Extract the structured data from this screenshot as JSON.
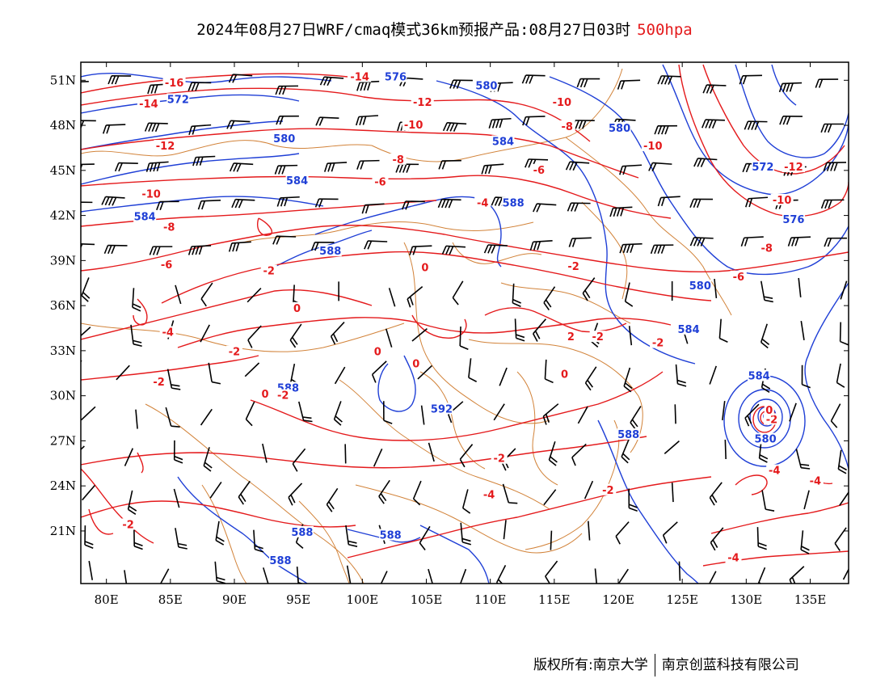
{
  "header": {
    "title": "2024年08月27日WRF/cmaq模式36km预报产品:08月27日03时",
    "level": "500hpa"
  },
  "axes": {
    "lat_labels": [
      "51N",
      "48N",
      "45N",
      "42N",
      "39N",
      "36N",
      "33N",
      "30N",
      "27N",
      "24N",
      "21N"
    ],
    "lon_labels": [
      "80E",
      "85E",
      "90E",
      "95E",
      "100E",
      "105E",
      "110E",
      "115E",
      "120E",
      "125E",
      "130E",
      "135E"
    ]
  },
  "colors": {
    "temperature": "#e41a1c",
    "height": "#1f3fd6",
    "boundary": "#d2833a",
    "barb": "#000000"
  },
  "map_data": {
    "height_labels": [
      {
        "text": "576",
        "lon": 102.6,
        "lat": 51.2
      },
      {
        "text": "572",
        "lon": 85.6,
        "lat": 49.7
      },
      {
        "text": "580",
        "lon": 109.7,
        "lat": 50.6
      },
      {
        "text": "580",
        "lon": 93.9,
        "lat": 47.1
      },
      {
        "text": "584",
        "lon": 111.0,
        "lat": 46.9
      },
      {
        "text": "584",
        "lon": 94.9,
        "lat": 44.3
      },
      {
        "text": "580",
        "lon": 120.1,
        "lat": 47.8
      },
      {
        "text": "588",
        "lon": 111.8,
        "lat": 42.8
      },
      {
        "text": "584",
        "lon": 83.0,
        "lat": 41.9
      },
      {
        "text": "588",
        "lon": 97.5,
        "lat": 39.6
      },
      {
        "text": "572",
        "lon": 131.3,
        "lat": 45.2
      },
      {
        "text": "576",
        "lon": 133.7,
        "lat": 41.7
      },
      {
        "text": "580",
        "lon": 126.4,
        "lat": 37.3
      },
      {
        "text": "584",
        "lon": 125.5,
        "lat": 34.4
      },
      {
        "text": "584",
        "lon": 131.0,
        "lat": 31.3
      },
      {
        "text": "588",
        "lon": 94.2,
        "lat": 30.5
      },
      {
        "text": "592",
        "lon": 106.2,
        "lat": 29.1
      },
      {
        "text": "588",
        "lon": 120.8,
        "lat": 27.4
      },
      {
        "text": "580",
        "lon": 131.5,
        "lat": 27.1
      },
      {
        "text": "588",
        "lon": 95.3,
        "lat": 20.9
      },
      {
        "text": "588",
        "lon": 102.2,
        "lat": 20.7
      },
      {
        "text": "588",
        "lon": 93.6,
        "lat": 19.0
      }
    ],
    "temperature_labels": [
      {
        "text": "-14",
        "lon": 99.8,
        "lat": 51.2
      },
      {
        "text": "-14",
        "lon": 83.3,
        "lat": 49.4
      },
      {
        "text": "-16",
        "lon": 85.3,
        "lat": 50.8
      },
      {
        "text": "-12",
        "lon": 104.7,
        "lat": 49.5
      },
      {
        "text": "-10",
        "lon": 115.6,
        "lat": 49.5
      },
      {
        "text": "-10",
        "lon": 104.0,
        "lat": 48.0
      },
      {
        "text": "-8",
        "lon": 116.0,
        "lat": 47.9
      },
      {
        "text": "-12",
        "lon": 84.6,
        "lat": 46.6
      },
      {
        "text": "-8",
        "lon": 102.8,
        "lat": 45.7
      },
      {
        "text": "-6",
        "lon": 101.4,
        "lat": 44.2
      },
      {
        "text": "-6",
        "lon": 113.8,
        "lat": 45.0
      },
      {
        "text": "-10",
        "lon": 122.7,
        "lat": 46.6
      },
      {
        "text": "-12",
        "lon": 133.7,
        "lat": 45.2
      },
      {
        "text": "-10",
        "lon": 132.8,
        "lat": 43.0
      },
      {
        "text": "-10",
        "lon": 83.5,
        "lat": 43.4
      },
      {
        "text": "-4",
        "lon": 109.4,
        "lat": 42.8
      },
      {
        "text": "-8",
        "lon": 84.9,
        "lat": 41.2
      },
      {
        "text": "-8",
        "lon": 131.6,
        "lat": 39.8
      },
      {
        "text": "-6",
        "lon": 84.7,
        "lat": 38.7
      },
      {
        "text": "-2",
        "lon": 92.7,
        "lat": 38.3
      },
      {
        "text": "0",
        "lon": 104.9,
        "lat": 38.5
      },
      {
        "text": "-2",
        "lon": 116.5,
        "lat": 38.6
      },
      {
        "text": "-6",
        "lon": 129.4,
        "lat": 37.9
      },
      {
        "text": "0",
        "lon": 94.9,
        "lat": 35.8
      },
      {
        "text": "-4",
        "lon": 84.8,
        "lat": 34.2
      },
      {
        "text": "2",
        "lon": 116.3,
        "lat": 33.9
      },
      {
        "text": "-2",
        "lon": 118.4,
        "lat": 33.9
      },
      {
        "text": "-2",
        "lon": 123.1,
        "lat": 33.5
      },
      {
        "text": "-2",
        "lon": 90.0,
        "lat": 32.9
      },
      {
        "text": "0",
        "lon": 101.2,
        "lat": 32.9
      },
      {
        "text": "0",
        "lon": 104.2,
        "lat": 32.1
      },
      {
        "text": "0",
        "lon": 115.8,
        "lat": 31.4
      },
      {
        "text": "-2",
        "lon": 84.1,
        "lat": 30.9
      },
      {
        "text": "0",
        "lon": 92.4,
        "lat": 30.1
      },
      {
        "text": "-2",
        "lon": 93.8,
        "lat": 30.0
      },
      {
        "text": "-2",
        "lon": 132.0,
        "lat": 28.4
      },
      {
        "text": "0",
        "lon": 131.8,
        "lat": 29.0
      },
      {
        "text": "-2",
        "lon": 110.7,
        "lat": 25.8
      },
      {
        "text": "-4",
        "lon": 132.2,
        "lat": 25.0
      },
      {
        "text": "-4",
        "lon": 135.4,
        "lat": 24.3
      },
      {
        "text": "-4",
        "lon": 109.9,
        "lat": 23.4
      },
      {
        "text": "-2",
        "lon": 119.2,
        "lat": 23.7
      },
      {
        "text": "-2",
        "lon": 81.7,
        "lat": 21.4
      },
      {
        "text": "-4",
        "lon": 129.0,
        "lat": 19.2
      }
    ]
  },
  "footer": {
    "left": "版权所有:南京大学",
    "right": "南京创蓝科技有限公司"
  }
}
